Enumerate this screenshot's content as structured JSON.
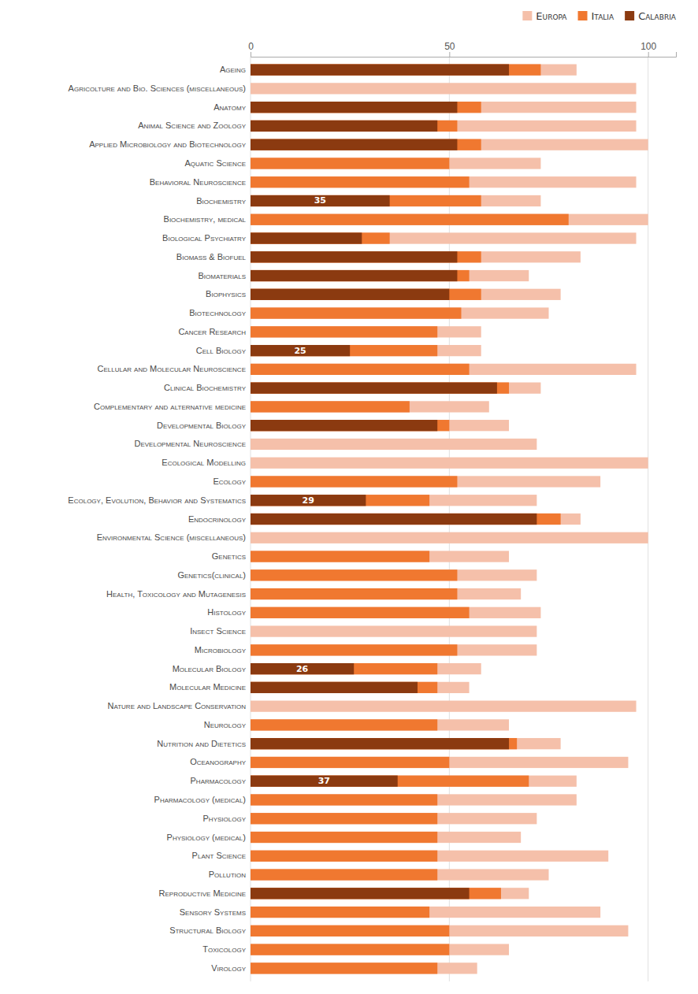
{
  "chart_data": {
    "type": "bar",
    "orientation": "horizontal",
    "grid": true,
    "legend": "top-right",
    "categories": [
      "Ageing",
      "Agricolture and Bio. Sciences (miscellaneous)",
      "Anatomy",
      "Animal Science and Zoology",
      "Applied Microbiology and Biotechnology",
      "Aquatic Science",
      "Behavioral Neuroscience",
      "Biochemistry",
      "Biochemistry, medical",
      "Biological Psychiatry",
      "Biomass & Biofuel",
      "Biomaterials",
      "Biophysics",
      "Biotechnology",
      "Cancer Research",
      "Cell Biology",
      "Cellular and Molecular Neuroscience",
      "Clinical Biochemistry",
      "Complementary and alternative medicine",
      "Developmental Biology",
      "Developmental Neuroscience",
      "Ecological Modelling",
      "Ecology",
      "Ecology, Evolution, Behavior and Systematics",
      "Endocrinology",
      "Environmental Science (miscellaneous)",
      "Genetics",
      "Genetics(clinical)",
      "Health, Toxicology and Mutagenesis",
      "Histology",
      "Insect Science",
      "Microbiology",
      "Molecular Biology",
      "Molecular Medicine",
      "Nature and Landscape Conservation",
      "Neurology",
      "Nutrition and Dietetics",
      "Oceanography",
      "Pharmacology",
      "Pharmacology (medical)",
      "Physiology",
      "Physiology (medical)",
      "Plant Science",
      "Pollution",
      "Reproductive Medicine",
      "Sensory Systems",
      "Structural Biology",
      "Toxicology",
      "Virology"
    ],
    "series": [
      {
        "name": "Europa",
        "color": "#f5c0aa",
        "values": [
          82,
          97,
          97,
          97,
          100,
          73,
          97,
          73,
          100,
          97,
          83,
          70,
          78,
          75,
          58,
          58,
          97,
          73,
          60,
          65,
          72,
          100,
          88,
          72,
          83,
          100,
          65,
          72,
          68,
          73,
          72,
          72,
          58,
          55,
          97,
          65,
          78,
          95,
          82,
          82,
          72,
          68,
          90,
          75,
          70,
          88,
          95,
          65,
          57
        ]
      },
      {
        "name": "Italia",
        "color": "#f07830",
        "values": [
          73,
          0,
          58,
          52,
          58,
          50,
          55,
          58,
          80,
          35,
          58,
          55,
          58,
          53,
          47,
          47,
          55,
          65,
          40,
          50,
          0,
          0,
          52,
          45,
          78,
          0,
          45,
          52,
          52,
          55,
          0,
          52,
          47,
          47,
          0,
          47,
          67,
          50,
          70,
          47,
          47,
          47,
          47,
          47,
          63,
          45,
          50,
          50,
          47
        ]
      },
      {
        "name": "Calabria",
        "color": "#8b3a10",
        "data_labels": true,
        "values": [
          65,
          0,
          52,
          47,
          52,
          0,
          0,
          35,
          0,
          28,
          52,
          52,
          50,
          0,
          0,
          25,
          0,
          62,
          0,
          47,
          0,
          0,
          0,
          29,
          72,
          0,
          0,
          0,
          0,
          0,
          0,
          0,
          26,
          42,
          0,
          0,
          65,
          0,
          37,
          0,
          0,
          0,
          0,
          0,
          55,
          0,
          0,
          0,
          0
        ],
        "value_labels": [
          null,
          null,
          null,
          null,
          null,
          null,
          null,
          "35",
          null,
          null,
          null,
          null,
          null,
          null,
          null,
          "25",
          null,
          null,
          null,
          null,
          null,
          null,
          null,
          "29",
          null,
          null,
          null,
          null,
          null,
          null,
          null,
          null,
          "26",
          null,
          null,
          null,
          null,
          null,
          "37",
          null,
          null,
          null,
          null,
          null,
          null,
          null,
          null,
          null,
          null
        ]
      }
    ],
    "xlim": [
      0,
      107
    ],
    "xticks": [
      0,
      50,
      100
    ]
  }
}
